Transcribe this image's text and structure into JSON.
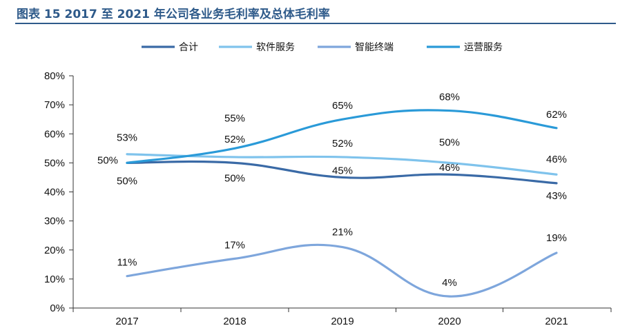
{
  "title": "图表 15 2017 至 2021 年公司各业务毛利率及总体毛利率",
  "chart_data": {
    "type": "line",
    "title": "图表 15 2017 至 2021 年公司各业务毛利率及总体毛利率",
    "categories": [
      "2017",
      "2018",
      "2019",
      "2020",
      "2021"
    ],
    "ylim": [
      0,
      80
    ],
    "yticks": [
      "0%",
      "10%",
      "20%",
      "30%",
      "40%",
      "50%",
      "60%",
      "70%",
      "80%"
    ],
    "legend_position": "top",
    "grid": false,
    "series": [
      {
        "name": "合计",
        "values": [
          50,
          50,
          45,
          46,
          43
        ],
        "labels": [
          "50%",
          "50%",
          "45%",
          "46%",
          "43%"
        ],
        "color": "#3a6aa6"
      },
      {
        "name": "软件服务",
        "values": [
          53,
          52,
          52,
          50,
          46
        ],
        "labels": [
          "53%",
          "52%",
          "52%",
          "50%",
          "46%"
        ],
        "color": "#7fc3ec"
      },
      {
        "name": "智能终端",
        "values": [
          11,
          17,
          21,
          4,
          19
        ],
        "labels": [
          "11%",
          "17%",
          "21%",
          "4%",
          "19%"
        ],
        "color": "#7ea6dc"
      },
      {
        "name": "运营服务",
        "values": [
          50,
          55,
          65,
          68,
          62
        ],
        "labels": [
          "50%",
          "55%",
          "65%",
          "68%",
          "62%"
        ],
        "color": "#2a9ad8"
      }
    ]
  }
}
